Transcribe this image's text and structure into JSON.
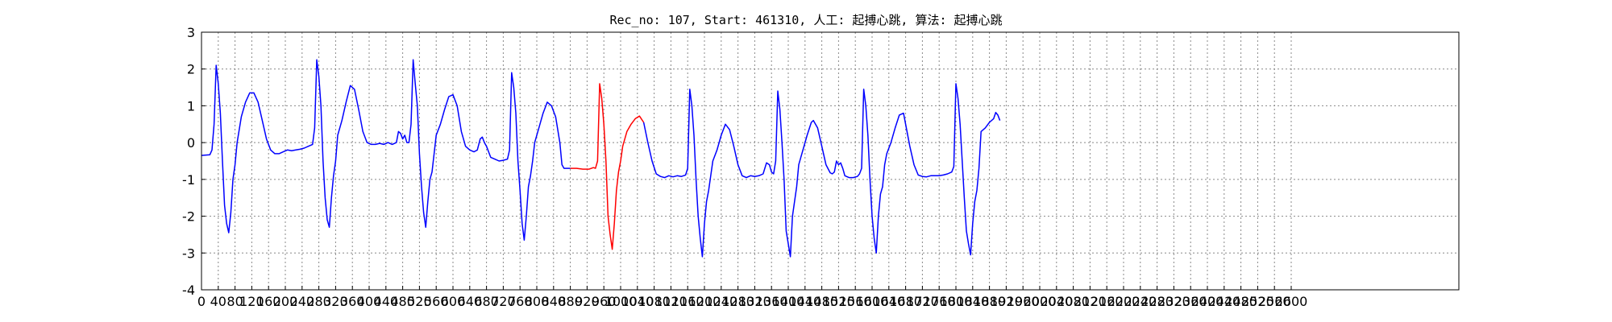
{
  "chart_data": {
    "type": "line",
    "title": "Rec_no: 107, Start: 461310, 人工: 起搏心跳, 算法: 起搏心跳",
    "xlabel": "",
    "ylabel": "",
    "xlim": [
      0,
      3000
    ],
    "ylim": [
      -4,
      3
    ],
    "grid": true,
    "yticks": [
      -4,
      -3,
      -2,
      -1,
      0,
      1,
      2,
      3
    ],
    "xticks": [
      0,
      40,
      80,
      120,
      160,
      200,
      240,
      280,
      320,
      360,
      400,
      440,
      480,
      520,
      560,
      600,
      640,
      680,
      720,
      760,
      800,
      840,
      880,
      920,
      960,
      1000,
      1040,
      1080,
      1120,
      1160,
      1200,
      1240,
      1280,
      1320,
      1360,
      1400,
      1440,
      1480,
      1520,
      1560,
      1600,
      1640,
      1680,
      1720,
      1760,
      1800,
      1840,
      1880,
      1920,
      1960,
      2000,
      2040,
      2080,
      2120,
      2160,
      2200,
      2240,
      2280,
      2320,
      2360,
      2400,
      2440,
      2480,
      2520,
      2560,
      2600
    ],
    "series": [
      {
        "color": "#0000ff",
        "points": [
          [
            0,
            -0.35
          ],
          [
            20,
            -0.33
          ],
          [
            25,
            -0.2
          ],
          [
            30,
            0.5
          ],
          [
            35,
            2.1
          ],
          [
            40,
            1.6
          ],
          [
            45,
            0.8
          ],
          [
            50,
            -0.5
          ],
          [
            55,
            -1.7
          ],
          [
            60,
            -2.2
          ],
          [
            65,
            -2.45
          ],
          [
            70,
            -1.9
          ],
          [
            75,
            -1.0
          ],
          [
            80,
            -0.6
          ],
          [
            85,
            0.0
          ],
          [
            95,
            0.7
          ],
          [
            105,
            1.1
          ],
          [
            115,
            1.35
          ],
          [
            125,
            1.35
          ],
          [
            135,
            1.1
          ],
          [
            145,
            0.6
          ],
          [
            155,
            0.1
          ],
          [
            165,
            -0.2
          ],
          [
            175,
            -0.3
          ],
          [
            185,
            -0.3
          ],
          [
            195,
            -0.25
          ],
          [
            205,
            -0.2
          ],
          [
            215,
            -0.22
          ],
          [
            225,
            -0.2
          ],
          [
            235,
            -0.18
          ],
          [
            245,
            -0.15
          ],
          [
            255,
            -0.1
          ],
          [
            265,
            -0.05
          ],
          [
            270,
            0.4
          ],
          [
            275,
            2.25
          ],
          [
            280,
            1.8
          ],
          [
            285,
            1.0
          ],
          [
            290,
            -0.5
          ],
          [
            295,
            -1.5
          ],
          [
            300,
            -2.1
          ],
          [
            305,
            -2.3
          ],
          [
            310,
            -1.5
          ],
          [
            315,
            -0.9
          ],
          [
            320,
            -0.5
          ],
          [
            325,
            0.2
          ],
          [
            335,
            0.6
          ],
          [
            345,
            1.1
          ],
          [
            355,
            1.55
          ],
          [
            365,
            1.45
          ],
          [
            375,
            0.9
          ],
          [
            385,
            0.3
          ],
          [
            395,
            0.0
          ],
          [
            405,
            -0.05
          ],
          [
            415,
            -0.05
          ],
          [
            425,
            -0.02
          ],
          [
            435,
            -0.05
          ],
          [
            445,
            0.0
          ],
          [
            455,
            -0.05
          ],
          [
            465,
            0.0
          ],
          [
            470,
            0.3
          ],
          [
            475,
            0.25
          ],
          [
            480,
            0.1
          ],
          [
            485,
            0.2
          ],
          [
            490,
            0.0
          ],
          [
            495,
            0.0
          ],
          [
            500,
            0.5
          ],
          [
            505,
            2.25
          ],
          [
            510,
            1.6
          ],
          [
            515,
            1.0
          ],
          [
            520,
            -0.3
          ],
          [
            525,
            -1.2
          ],
          [
            530,
            -1.9
          ],
          [
            535,
            -2.3
          ],
          [
            540,
            -1.6
          ],
          [
            545,
            -1.0
          ],
          [
            550,
            -0.8
          ],
          [
            555,
            -0.3
          ],
          [
            560,
            0.2
          ],
          [
            570,
            0.5
          ],
          [
            580,
            0.9
          ],
          [
            590,
            1.25
          ],
          [
            600,
            1.3
          ],
          [
            610,
            1.0
          ],
          [
            620,
            0.3
          ],
          [
            630,
            -0.1
          ],
          [
            640,
            -0.2
          ],
          [
            650,
            -0.25
          ],
          [
            658,
            -0.2
          ],
          [
            665,
            0.1
          ],
          [
            670,
            0.15
          ],
          [
            675,
            0.0
          ],
          [
            680,
            -0.1
          ],
          [
            690,
            -0.4
          ],
          [
            700,
            -0.45
          ],
          [
            710,
            -0.5
          ],
          [
            720,
            -0.48
          ],
          [
            730,
            -0.45
          ],
          [
            735,
            -0.2
          ],
          [
            740,
            1.9
          ],
          [
            745,
            1.5
          ],
          [
            750,
            0.8
          ],
          [
            755,
            -0.5
          ],
          [
            760,
            -1.3
          ],
          [
            765,
            -2.2
          ],
          [
            770,
            -2.65
          ],
          [
            775,
            -2.0
          ],
          [
            780,
            -1.2
          ],
          [
            785,
            -0.9
          ],
          [
            790,
            -0.5
          ],
          [
            795,
            0.0
          ],
          [
            805,
            0.4
          ],
          [
            815,
            0.8
          ],
          [
            825,
            1.1
          ],
          [
            835,
            1.0
          ],
          [
            845,
            0.7
          ],
          [
            855,
            0.0
          ],
          [
            860,
            -0.6
          ],
          [
            865,
            -0.7
          ],
          [
            880,
            -0.7
          ]
        ]
      },
      {
        "color": "#ff0000",
        "points": [
          [
            880,
            -0.7
          ],
          [
            895,
            -0.7
          ],
          [
            910,
            -0.72
          ],
          [
            925,
            -0.72
          ],
          [
            935,
            -0.68
          ],
          [
            940,
            -0.7
          ],
          [
            945,
            -0.5
          ],
          [
            950,
            1.6
          ],
          [
            955,
            1.2
          ],
          [
            960,
            0.5
          ],
          [
            965,
            -0.5
          ],
          [
            970,
            -2.0
          ],
          [
            975,
            -2.5
          ],
          [
            980,
            -2.9
          ],
          [
            985,
            -2.2
          ],
          [
            990,
            -1.3
          ],
          [
            995,
            -0.8
          ],
          [
            1000,
            -0.5
          ],
          [
            1005,
            -0.1
          ],
          [
            1015,
            0.3
          ],
          [
            1025,
            0.5
          ],
          [
            1035,
            0.65
          ],
          [
            1045,
            0.72
          ],
          [
            1055,
            0.55
          ]
        ]
      },
      {
        "color": "#0000ff",
        "points": [
          [
            1055,
            0.55
          ],
          [
            1065,
            0.0
          ],
          [
            1075,
            -0.5
          ],
          [
            1085,
            -0.85
          ],
          [
            1095,
            -0.92
          ],
          [
            1105,
            -0.95
          ],
          [
            1115,
            -0.9
          ],
          [
            1125,
            -0.93
          ],
          [
            1135,
            -0.9
          ],
          [
            1145,
            -0.92
          ],
          [
            1155,
            -0.88
          ],
          [
            1160,
            -0.7
          ],
          [
            1165,
            1.45
          ],
          [
            1170,
            1.0
          ],
          [
            1175,
            0.2
          ],
          [
            1180,
            -1.0
          ],
          [
            1185,
            -2.0
          ],
          [
            1190,
            -2.6
          ],
          [
            1195,
            -3.1
          ],
          [
            1200,
            -2.2
          ],
          [
            1205,
            -1.6
          ],
          [
            1210,
            -1.3
          ],
          [
            1215,
            -0.9
          ],
          [
            1220,
            -0.5
          ],
          [
            1230,
            -0.2
          ],
          [
            1240,
            0.2
          ],
          [
            1250,
            0.5
          ],
          [
            1260,
            0.35
          ],
          [
            1270,
            -0.1
          ],
          [
            1280,
            -0.6
          ],
          [
            1290,
            -0.9
          ],
          [
            1300,
            -0.95
          ],
          [
            1310,
            -0.9
          ],
          [
            1320,
            -0.92
          ],
          [
            1330,
            -0.9
          ],
          [
            1340,
            -0.85
          ],
          [
            1348,
            -0.55
          ],
          [
            1355,
            -0.6
          ],
          [
            1360,
            -0.8
          ],
          [
            1365,
            -0.85
          ],
          [
            1370,
            -0.5
          ],
          [
            1375,
            1.4
          ],
          [
            1380,
            0.9
          ],
          [
            1385,
            0.0
          ],
          [
            1390,
            -1.0
          ],
          [
            1395,
            -2.4
          ],
          [
            1400,
            -2.75
          ],
          [
            1405,
            -3.1
          ],
          [
            1410,
            -2.0
          ],
          [
            1415,
            -1.6
          ],
          [
            1420,
            -1.2
          ],
          [
            1425,
            -0.6
          ],
          [
            1435,
            -0.2
          ],
          [
            1445,
            0.2
          ],
          [
            1455,
            0.55
          ],
          [
            1460,
            0.6
          ],
          [
            1470,
            0.4
          ],
          [
            1480,
            -0.1
          ],
          [
            1490,
            -0.6
          ],
          [
            1500,
            -0.82
          ],
          [
            1505,
            -0.85
          ],
          [
            1510,
            -0.8
          ],
          [
            1515,
            -0.5
          ],
          [
            1520,
            -0.6
          ],
          [
            1525,
            -0.55
          ],
          [
            1530,
            -0.7
          ],
          [
            1535,
            -0.9
          ],
          [
            1545,
            -0.95
          ],
          [
            1555,
            -0.95
          ],
          [
            1565,
            -0.92
          ],
          [
            1570,
            -0.85
          ],
          [
            1575,
            -0.7
          ],
          [
            1580,
            1.45
          ],
          [
            1585,
            1.0
          ],
          [
            1590,
            0.2
          ],
          [
            1595,
            -1.0
          ],
          [
            1600,
            -2.0
          ],
          [
            1605,
            -2.6
          ],
          [
            1610,
            -3.0
          ],
          [
            1615,
            -2.0
          ],
          [
            1620,
            -1.4
          ],
          [
            1625,
            -1.2
          ],
          [
            1630,
            -0.6
          ],
          [
            1635,
            -0.3
          ],
          [
            1645,
            0.0
          ],
          [
            1655,
            0.4
          ],
          [
            1665,
            0.75
          ],
          [
            1675,
            0.8
          ],
          [
            1680,
            0.5
          ],
          [
            1690,
            -0.1
          ],
          [
            1700,
            -0.6
          ],
          [
            1710,
            -0.88
          ],
          [
            1720,
            -0.92
          ],
          [
            1730,
            -0.93
          ],
          [
            1740,
            -0.9
          ],
          [
            1750,
            -0.9
          ],
          [
            1760,
            -0.9
          ],
          [
            1770,
            -0.88
          ],
          [
            1780,
            -0.85
          ],
          [
            1790,
            -0.8
          ],
          [
            1795,
            -0.65
          ],
          [
            1800,
            1.6
          ],
          [
            1805,
            1.2
          ],
          [
            1810,
            0.5
          ],
          [
            1815,
            -0.5
          ],
          [
            1820,
            -1.5
          ],
          [
            1825,
            -2.4
          ],
          [
            1830,
            -2.75
          ],
          [
            1835,
            -3.05
          ],
          [
            1840,
            -2.2
          ],
          [
            1845,
            -1.6
          ],
          [
            1850,
            -1.3
          ],
          [
            1855,
            -0.7
          ],
          [
            1860,
            0.3
          ],
          [
            1870,
            0.4
          ],
          [
            1880,
            0.55
          ],
          [
            1890,
            0.65
          ],
          [
            1895,
            0.82
          ],
          [
            1900,
            0.75
          ],
          [
            1905,
            0.6
          ]
        ]
      }
    ]
  }
}
